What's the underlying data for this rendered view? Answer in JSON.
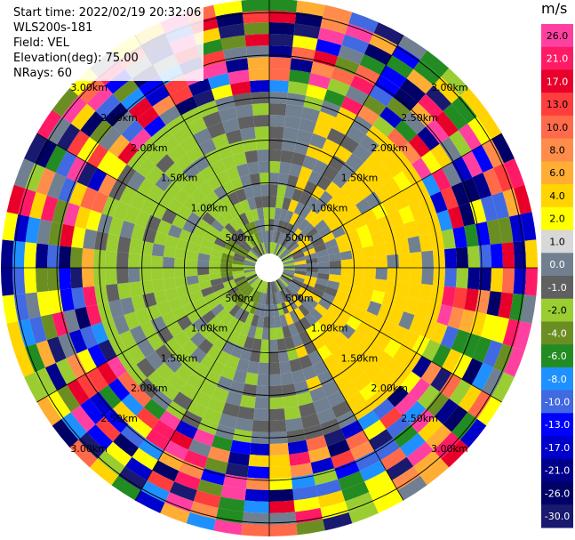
{
  "info": {
    "start_time": "Start time: 2022/02/19 20:32:06",
    "instrument": "WLS200s-181",
    "field": "Field: VEL",
    "elevation": "Elevation(deg): 75.00",
    "nrays": "NRays: 60"
  },
  "ppi": {
    "range_rings_km": [
      0.5,
      1.0,
      1.5,
      2.0,
      2.5,
      3.0
    ],
    "ring_labels": [
      "500m",
      "1.00km",
      "1.50km",
      "2.00km",
      "2.50km",
      "3.00km"
    ],
    "n_rays": 60,
    "n_gates": 22,
    "spoke_count": 12
  },
  "colorbar": {
    "units": "m/s",
    "tick_labels": [
      "26.0",
      "21.0",
      "17.0",
      "13.0",
      "10.0",
      "8.0",
      "6.0",
      "4.0",
      "2.0",
      "1.0",
      "0.0",
      "-1.0",
      "-2.0",
      "-4.0",
      "-6.0",
      "-8.0",
      "-10.0",
      "-13.0",
      "-17.0",
      "-21.0",
      "-26.0",
      "-30.0"
    ],
    "colors": [
      "#ff40a0",
      "#ff1a66",
      "#e8002a",
      "#ff3d3d",
      "#ff6a4a",
      "#ff8c4a",
      "#ffad33",
      "#ffd400",
      "#ffff00",
      "#d8d8d8",
      "#708090",
      "#606060",
      "#9acd32",
      "#6b8e23",
      "#228b22",
      "#1e90ff",
      "#4169e1",
      "#0000ff",
      "#0000cd",
      "#00008b",
      "#000066",
      "#191970"
    ]
  }
}
